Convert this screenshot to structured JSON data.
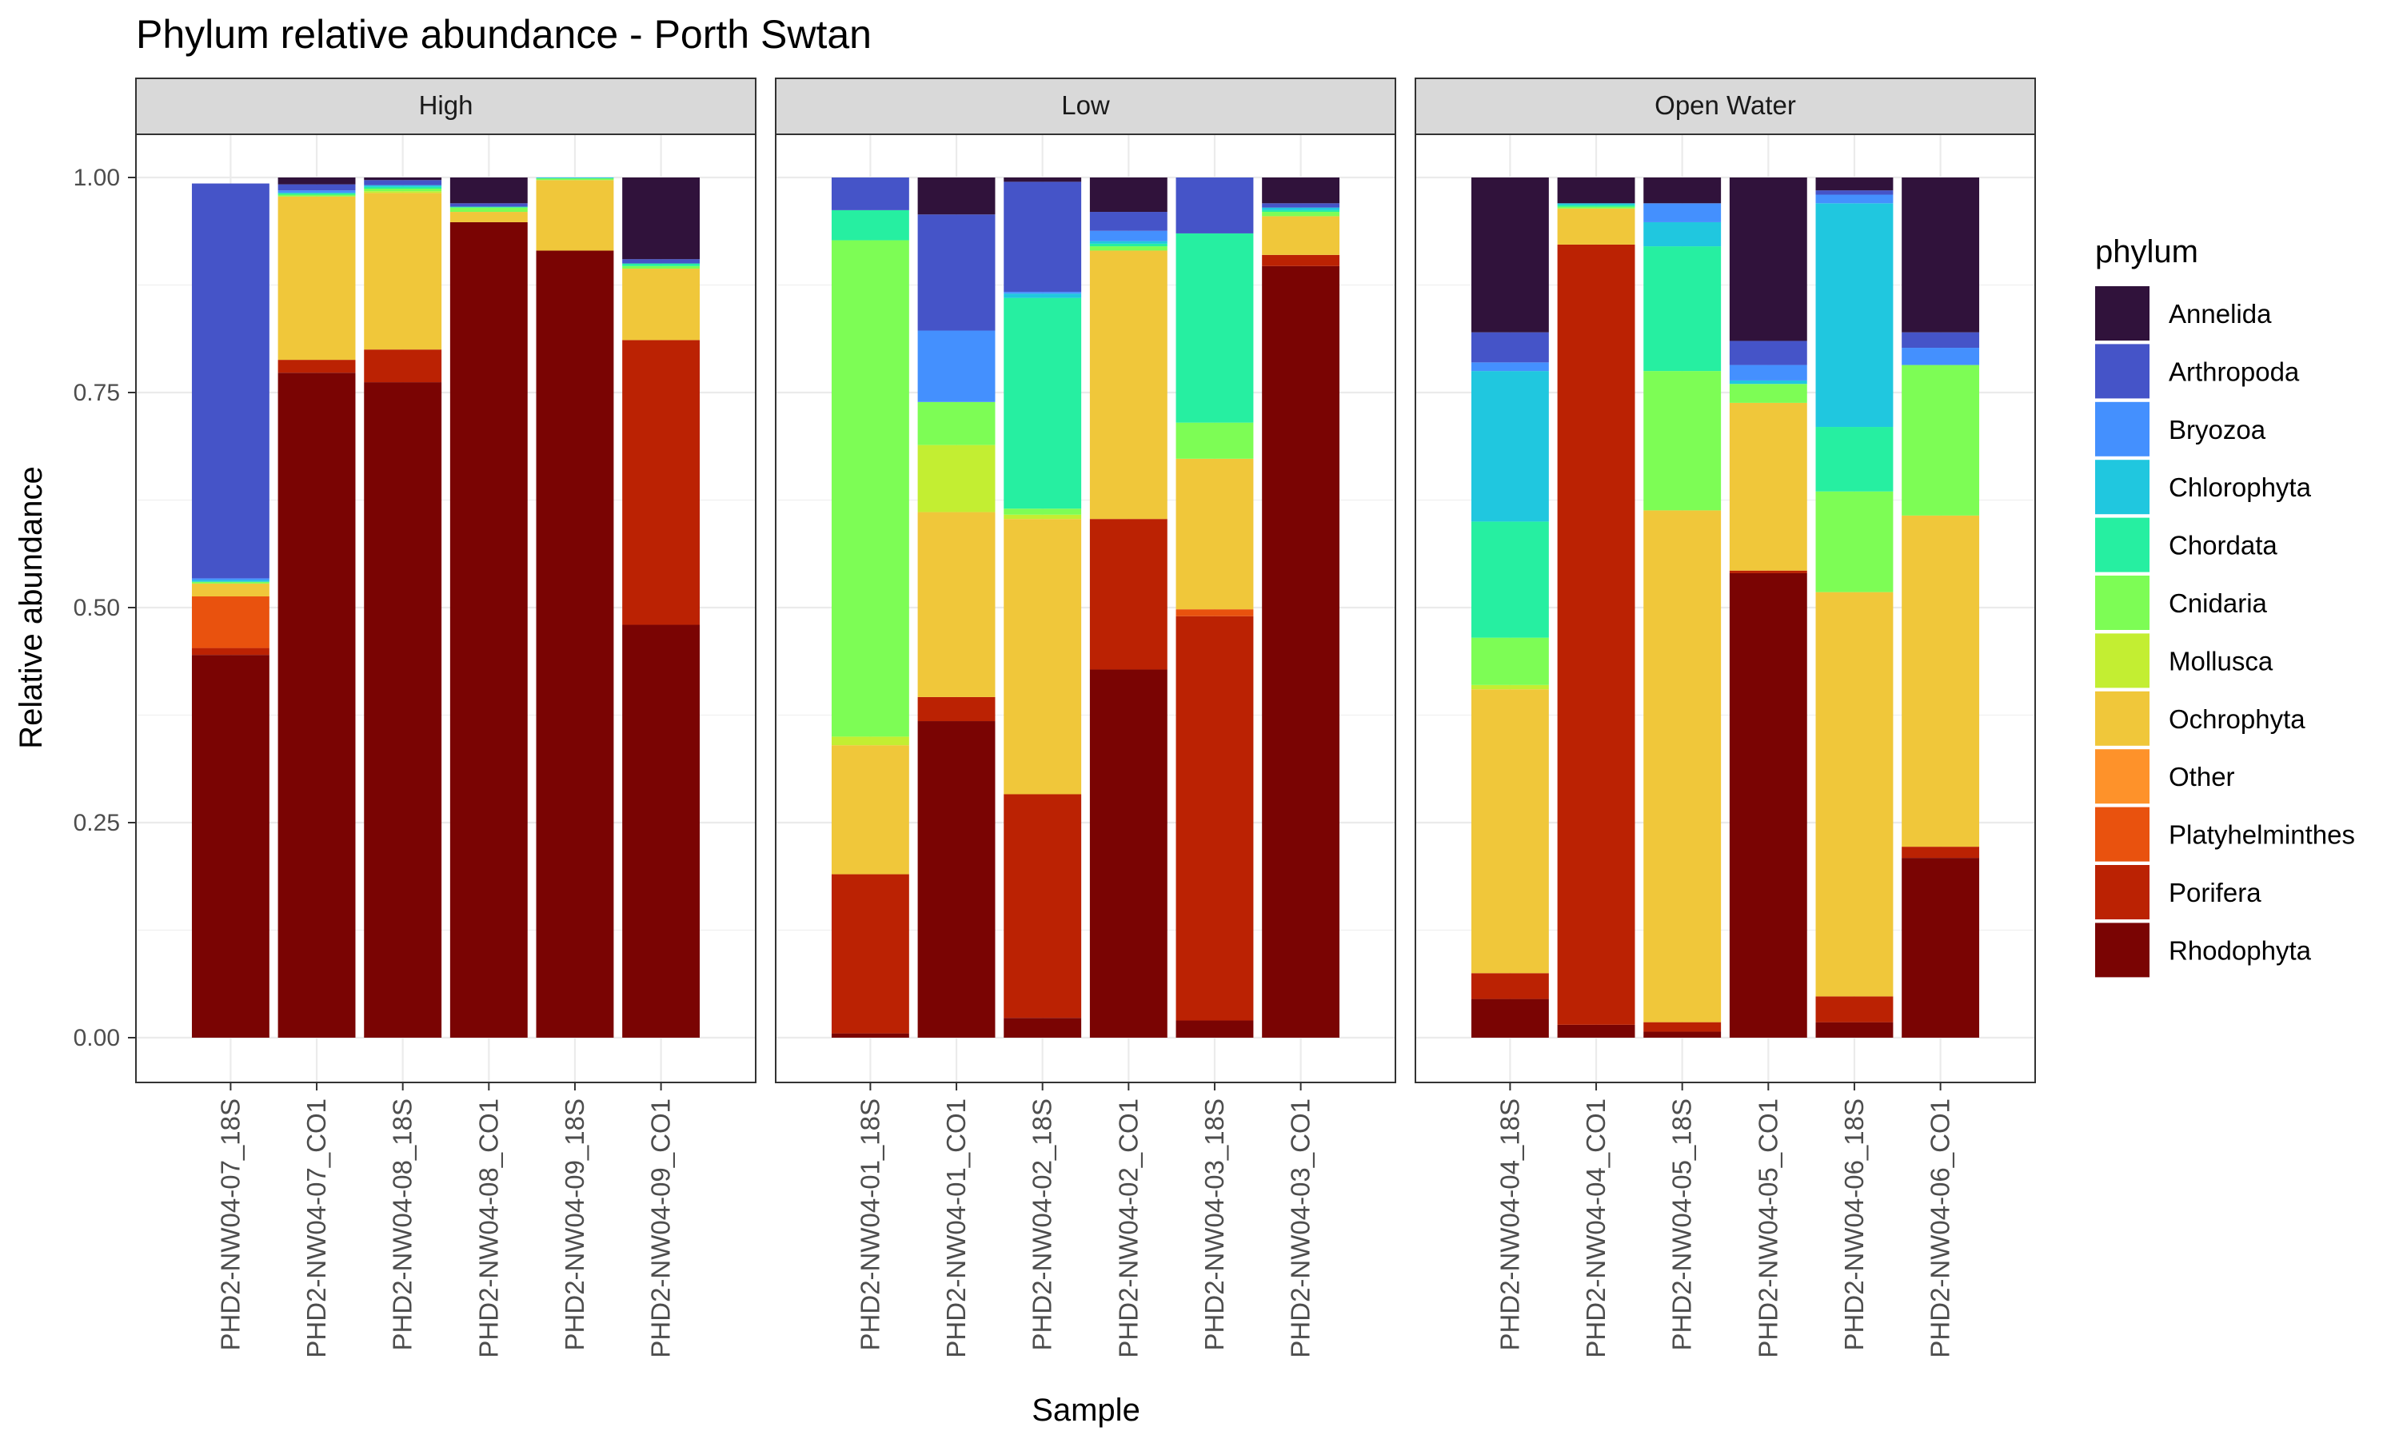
{
  "chart_data": {
    "type": "bar",
    "stacked": true,
    "title": "Phylum relative abundance - Porth Swtan",
    "xlabel": "Sample",
    "ylabel": "Relative abundance",
    "ylim": [
      0,
      1.05
    ],
    "yticks": [
      "0.00",
      "0.25",
      "0.50",
      "0.75",
      "1.00"
    ],
    "legend_title": "phylum",
    "legend_position": "right",
    "phyla": [
      "Annelida",
      "Arthropoda",
      "Bryozoa",
      "Chlorophyta",
      "Chordata",
      "Cnidaria",
      "Mollusca",
      "Ochrophyta",
      "Other",
      "Platyhelminthes",
      "Porifera",
      "Rhodophyta"
    ],
    "colors": {
      "Annelida": "#30123B",
      "Arthropoda": "#4554C8",
      "Bryozoa": "#4490FE",
      "Chlorophyta": "#20C7DF",
      "Chordata": "#26EFA1",
      "Cnidaria": "#7DFD55",
      "Mollusca": "#C3EE32",
      "Ochrophyta": "#F0C73A",
      "Other": "#FE922A",
      "Platyhelminthes": "#E9520E",
      "Porifera": "#BB2203",
      "Rhodophyta": "#7A0403"
    },
    "facets": [
      {
        "label": "High",
        "samples": [
          {
            "name": "PHD2-NW04-07_18S",
            "values": {
              "Arthropoda": 0.459,
              "Bryozoa": 0.002,
              "Chlorophyta": 0.002,
              "Cnidaria": 0.002,
              "Ochrophyta": 0.015,
              "Platyhelminthes": 0.06,
              "Porifera": 0.008,
              "Rhodophyta": 0.445
            }
          },
          {
            "name": "PHD2-NW04-07_CO1",
            "values": {
              "Annelida": 0.008,
              "Arthropoda": 0.007,
              "Bryozoa": 0.003,
              "Chordata": 0.002,
              "Cnidaria": 0.002,
              "Ochrophyta": 0.19,
              "Porifera": 0.015,
              "Rhodophyta": 0.773
            }
          },
          {
            "name": "PHD2-NW04-08_18S",
            "values": {
              "Annelida": 0.003,
              "Arthropoda": 0.006,
              "Chlorophyta": 0.002,
              "Chordata": 0.002,
              "Cnidaria": 0.003,
              "Mollusca": 0.002,
              "Ochrophyta": 0.182,
              "Porifera": 0.038,
              "Rhodophyta": 0.762
            }
          },
          {
            "name": "PHD2-NW04-08_CO1",
            "values": {
              "Annelida": 0.03,
              "Arthropoda": 0.004,
              "Chordata": 0.001,
              "Cnidaria": 0.005,
              "Ochrophyta": 0.012,
              "Rhodophyta": 0.948
            }
          },
          {
            "name": "PHD2-NW04-09_18S",
            "values": {
              "Chlorophyta": 0.001,
              "Cnidaria": 0.002,
              "Ochrophyta": 0.082,
              "Rhodophyta": 0.915
            }
          },
          {
            "name": "PHD2-NW04-09_CO1",
            "values": {
              "Annelida": 0.095,
              "Arthropoda": 0.005,
              "Chordata": 0.003,
              "Cnidaria": 0.003,
              "Ochrophyta": 0.083,
              "Porifera": 0.331,
              "Rhodophyta": 0.48
            }
          }
        ]
      },
      {
        "label": "Low",
        "samples": [
          {
            "name": "PHD2-NW04-01_18S",
            "values": {
              "Arthropoda": 0.038,
              "Chordata": 0.035,
              "Cnidaria": 0.577,
              "Mollusca": 0.01,
              "Ochrophyta": 0.15,
              "Porifera": 0.185,
              "Rhodophyta": 0.005
            }
          },
          {
            "name": "PHD2-NW04-01_CO1",
            "values": {
              "Annelida": 0.043,
              "Arthropoda": 0.135,
              "Bryozoa": 0.083,
              "Cnidaria": 0.05,
              "Mollusca": 0.078,
              "Ochrophyta": 0.215,
              "Porifera": 0.028,
              "Rhodophyta": 0.368
            }
          },
          {
            "name": "PHD2-NW04-02_18S",
            "values": {
              "Annelida": 0.005,
              "Arthropoda": 0.128,
              "Bryozoa": 0.002,
              "Chlorophyta": 0.005,
              "Chordata": 0.245,
              "Cnidaria": 0.007,
              "Mollusca": 0.005,
              "Ochrophyta": 0.32,
              "Porifera": 0.26,
              "Rhodophyta": 0.023
            }
          },
          {
            "name": "PHD2-NW04-02_CO1",
            "values": {
              "Annelida": 0.04,
              "Arthropoda": 0.022,
              "Bryozoa": 0.012,
              "Chlorophyta": 0.003,
              "Chordata": 0.003,
              "Cnidaria": 0.005,
              "Ochrophyta": 0.312,
              "Porifera": 0.175,
              "Rhodophyta": 0.428
            }
          },
          {
            "name": "PHD2-NW04-03_18S",
            "values": {
              "Arthropoda": 0.065,
              "Chordata": 0.22,
              "Cnidaria": 0.042,
              "Ochrophyta": 0.175,
              "Platyhelminthes": 0.008,
              "Porifera": 0.47,
              "Rhodophyta": 0.02
            }
          },
          {
            "name": "PHD2-NW04-03_CO1",
            "values": {
              "Annelida": 0.03,
              "Arthropoda": 0.005,
              "Chlorophyta": 0.003,
              "Chordata": 0.002,
              "Cnidaria": 0.005,
              "Ochrophyta": 0.045,
              "Porifera": 0.013,
              "Rhodophyta": 0.897
            }
          }
        ]
      },
      {
        "label": "Open Water",
        "samples": [
          {
            "name": "PHD2-NW04-04_18S",
            "values": {
              "Annelida": 0.18,
              "Arthropoda": 0.035,
              "Bryozoa": 0.01,
              "Chlorophyta": 0.175,
              "Chordata": 0.135,
              "Cnidaria": 0.055,
              "Mollusca": 0.005,
              "Ochrophyta": 0.33,
              "Porifera": 0.03,
              "Rhodophyta": 0.045
            }
          },
          {
            "name": "PHD2-NW04-04_CO1",
            "values": {
              "Annelida": 0.03,
              "Chlorophyta": 0.002,
              "Chordata": 0.002,
              "Cnidaria": 0.002,
              "Ochrophyta": 0.042,
              "Porifera": 0.907,
              "Rhodophyta": 0.015
            }
          },
          {
            "name": "PHD2-NW04-05_18S",
            "values": {
              "Annelida": 0.03,
              "Bryozoa": 0.022,
              "Chlorophyta": 0.028,
              "Chordata": 0.145,
              "Cnidaria": 0.162,
              "Ochrophyta": 0.595,
              "Porifera": 0.011,
              "Rhodophyta": 0.007
            }
          },
          {
            "name": "PHD2-NW04-05_CO1",
            "values": {
              "Annelida": 0.19,
              "Arthropoda": 0.028,
              "Bryozoa": 0.018,
              "Chlorophyta": 0.004,
              "Cnidaria": 0.022,
              "Ochrophyta": 0.195,
              "Porifera": 0.003,
              "Rhodophyta": 0.54
            }
          },
          {
            "name": "PHD2-NW04-06_18S",
            "values": {
              "Annelida": 0.015,
              "Arthropoda": 0.005,
              "Bryozoa": 0.01,
              "Chlorophyta": 0.26,
              "Chordata": 0.075,
              "Cnidaria": 0.117,
              "Ochrophyta": 0.47,
              "Porifera": 0.03,
              "Rhodophyta": 0.018
            }
          },
          {
            "name": "PHD2-NW04-06_CO1",
            "values": {
              "Annelida": 0.18,
              "Arthropoda": 0.018,
              "Bryozoa": 0.02,
              "Cnidaria": 0.175,
              "Ochrophyta": 0.385,
              "Porifera": 0.013,
              "Rhodophyta": 0.209
            }
          }
        ]
      }
    ]
  }
}
